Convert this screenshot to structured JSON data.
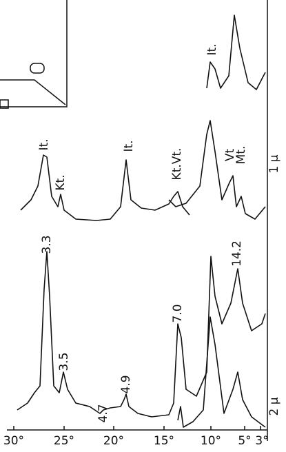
{
  "axis": {
    "ticks": [
      "30°",
      "25°",
      "20°",
      "15°",
      "10°",
      "5°",
      "3°"
    ]
  },
  "lower_pattern": {
    "label": "2 μ",
    "peaks": [
      "3.3",
      "3.5",
      "4.7",
      "4.9",
      "7.0",
      "14.2"
    ]
  },
  "upper_pattern": {
    "label": "1 μ",
    "peaks": [
      "It.",
      "Kt.",
      "It.",
      "Kt.Vt.",
      "It.",
      "Vt",
      "Mt."
    ]
  }
}
